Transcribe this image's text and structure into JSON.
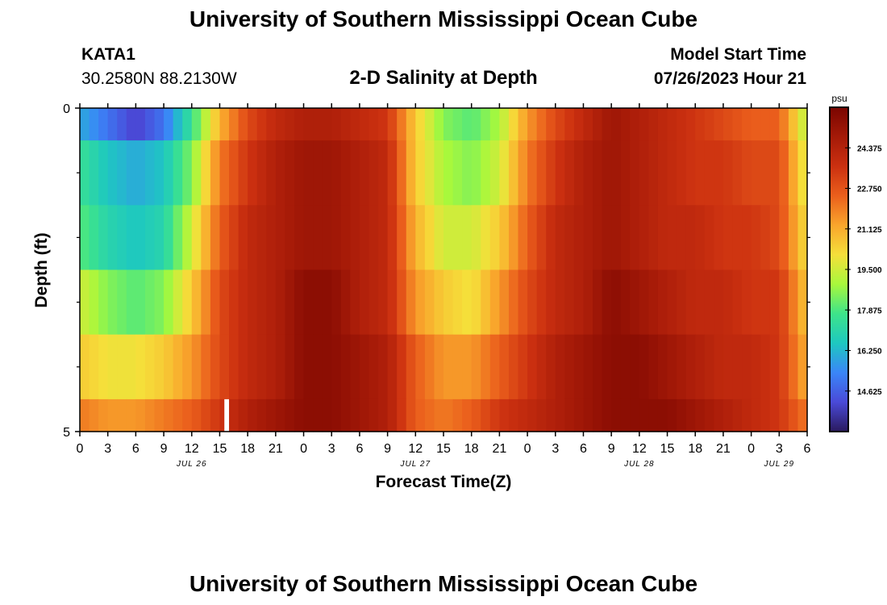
{
  "page": {
    "title_top": "University of Southern Mississippi Ocean Cube",
    "title_bottom": "University of Southern Mississippi Ocean Cube",
    "station_id": "KATA1",
    "station_coords": "30.2580N  88.2130W",
    "subtitle": "2-D Salinity at Depth",
    "model_start_label": "Model Start Time",
    "model_start_value": "07/26/2023 Hour 21"
  },
  "chart_data": {
    "type": "heatmap",
    "title": "2-D Salinity at Depth",
    "xlabel": "Forecast Time(Z)",
    "ylabel": "Depth (ft)",
    "x_unit": "hours from 00Z JUL 26",
    "x_range": [
      0,
      78
    ],
    "y_range": [
      0,
      5
    ],
    "x_tick_hours": [
      0,
      3,
      6,
      9,
      12,
      15,
      18,
      21,
      24,
      27,
      30,
      33,
      36,
      39,
      42,
      45,
      48,
      51,
      54,
      57,
      60,
      63,
      66,
      69,
      72,
      75,
      78
    ],
    "x_tick_labels": [
      "0",
      "3",
      "6",
      "9",
      "12",
      "15",
      "18",
      "21",
      "0",
      "3",
      "6",
      "9",
      "12",
      "15",
      "18",
      "21",
      "0",
      "3",
      "6",
      "9",
      "12",
      "15",
      "18",
      "21",
      "0",
      "3",
      "6"
    ],
    "date_labels": [
      {
        "text": "JUL 26",
        "hour": 12
      },
      {
        "text": "JUL 27",
        "hour": 36
      },
      {
        "text": "JUL 28",
        "hour": 60
      },
      {
        "text": "JUL 29",
        "hour": 75
      }
    ],
    "y_tick_labels": [
      {
        "value": 0,
        "text": "0"
      },
      {
        "value": 5,
        "text": "5"
      }
    ],
    "y_minor_ticks": [
      1,
      2,
      3,
      4
    ],
    "depth_levels": [
      0.25,
      1.0,
      2.0,
      3.0,
      4.0,
      4.75
    ],
    "row_boundaries": [
      0,
      0.5,
      1.5,
      2.5,
      3.5,
      4.5,
      5
    ],
    "salinity_keyframes": {
      "hours": [
        0,
        3,
        6,
        9,
        12,
        15,
        18,
        21,
        24,
        27,
        30,
        33,
        36,
        39,
        42,
        45,
        48,
        51,
        54,
        57,
        60,
        63,
        66,
        69,
        72,
        75,
        78
      ],
      "rows": [
        [
          16.0,
          15.0,
          14.0,
          15.0,
          17.5,
          21.0,
          23.0,
          24.0,
          24.5,
          24.5,
          24.0,
          23.5,
          20.5,
          18.5,
          18.0,
          19.0,
          21.5,
          23.0,
          24.0,
          25.0,
          24.5,
          24.0,
          23.5,
          23.0,
          22.5,
          22.5,
          19.0
        ],
        [
          17.5,
          16.5,
          16.0,
          16.5,
          18.5,
          22.0,
          23.5,
          24.5,
          25.0,
          25.0,
          24.5,
          24.0,
          20.5,
          19.0,
          18.5,
          19.5,
          22.0,
          23.5,
          24.5,
          25.0,
          24.5,
          24.0,
          23.5,
          23.5,
          23.0,
          23.0,
          19.5
        ],
        [
          18.0,
          17.0,
          16.5,
          17.0,
          19.5,
          22.5,
          24.0,
          24.5,
          25.0,
          25.0,
          24.5,
          24.0,
          21.0,
          19.5,
          19.5,
          20.5,
          22.5,
          24.0,
          24.5,
          25.0,
          24.5,
          24.0,
          24.0,
          23.5,
          23.5,
          23.0,
          20.0
        ],
        [
          19.5,
          18.5,
          18.0,
          18.5,
          20.5,
          23.0,
          24.0,
          24.5,
          25.5,
          25.5,
          24.5,
          24.0,
          21.5,
          20.5,
          20.0,
          21.5,
          23.0,
          24.0,
          24.5,
          25.5,
          25.0,
          24.5,
          24.0,
          24.0,
          23.5,
          23.5,
          20.5
        ],
        [
          20.5,
          20.0,
          20.0,
          20.5,
          21.5,
          23.0,
          24.0,
          24.5,
          25.5,
          25.5,
          25.0,
          24.5,
          22.5,
          21.5,
          21.5,
          22.5,
          23.5,
          24.5,
          25.0,
          25.5,
          25.5,
          25.0,
          24.5,
          24.0,
          24.0,
          23.5,
          21.0
        ],
        [
          22.0,
          21.5,
          21.5,
          22.0,
          22.5,
          23.5,
          24.5,
          25.0,
          25.5,
          25.5,
          25.0,
          24.5,
          22.5,
          22.0,
          22.5,
          23.5,
          24.0,
          24.5,
          25.0,
          25.5,
          25.5,
          25.5,
          25.0,
          24.5,
          24.0,
          23.5,
          22.0
        ]
      ]
    },
    "missing_data": {
      "hour_start": 15.5,
      "hour_end": 16.0,
      "row": 5
    },
    "colorbar": {
      "unit": "psu",
      "min": 13.0,
      "max": 26.0,
      "tick_values": [
        14.625,
        16.25,
        17.875,
        19.5,
        21.125,
        22.75,
        24.375
      ],
      "tick_labels": [
        "14.625",
        "16.250",
        "17.875",
        "19.500",
        "21.125",
        "22.750",
        "24.375"
      ],
      "colors": [
        "#2a1a5e",
        "#4a4ad8",
        "#3a86f8",
        "#1ec8c0",
        "#3ee48a",
        "#a8f83c",
        "#f5df3a",
        "#f9a52c",
        "#eb5f1c",
        "#cb3010",
        "#a51a08",
        "#7a0500"
      ]
    }
  }
}
